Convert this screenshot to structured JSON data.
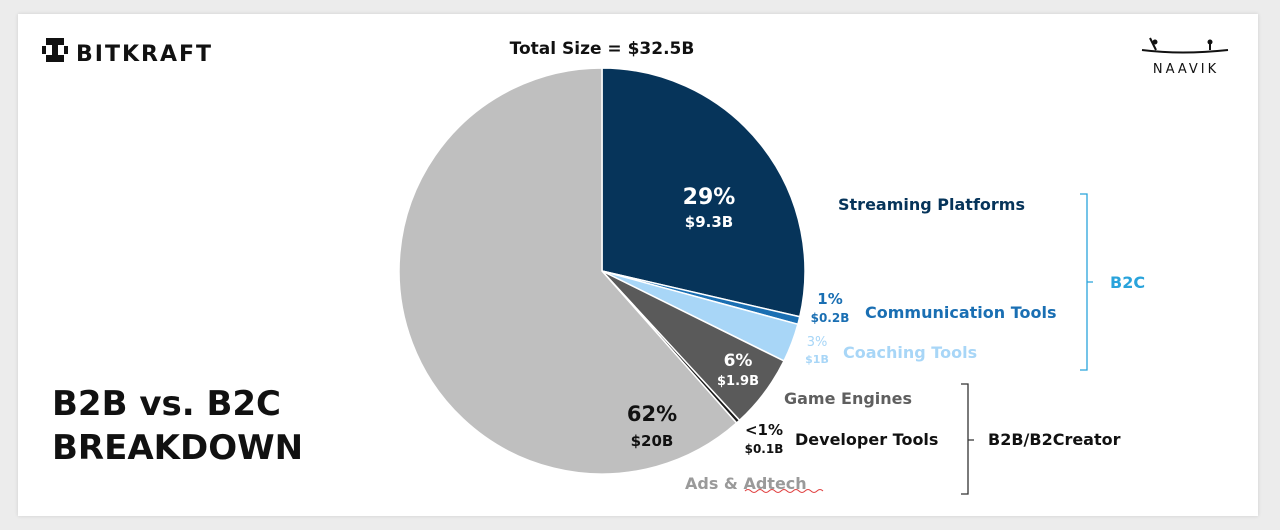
{
  "brand": {
    "left_logo": "BITKRAFT",
    "right_logo": "NAAVIK"
  },
  "headline": {
    "line1": "B2B vs. B2C",
    "line2": "BREAKDOWN"
  },
  "chart_data": {
    "type": "pie",
    "title": "Total Size = $32.5B",
    "slices": [
      {
        "label": "Streaming Platforms",
        "pct_label": "29%",
        "value_label": "$9.3B",
        "value": 9.3,
        "color": "#06345a",
        "label_color": "#06345a",
        "pct_color": "#ffffff"
      },
      {
        "label": "Communication Tools",
        "pct_label": "1%",
        "value_label": "$0.2B",
        "value": 0.2,
        "color": "#1a6fb3",
        "label_color": "#1a6fb3",
        "pct_color": "#1a6fb3"
      },
      {
        "label": "Coaching Tools",
        "pct_label": "3%",
        "value_label": "$1B",
        "value": 1.0,
        "color": "#a8d6f7",
        "label_color": "#a8d6f7",
        "pct_color": "#a8d6f7"
      },
      {
        "label": "Game Engines",
        "pct_label": "6%",
        "value_label": "$1.9B",
        "value": 1.9,
        "color": "#5a5a5a",
        "label_color": "#5f5f5f",
        "pct_color": "#ffffff"
      },
      {
        "label": "Developer Tools",
        "pct_label": "<1%",
        "value_label": "$0.1B",
        "value": 0.1,
        "color": "#1a1a1a",
        "label_color": "#111111",
        "pct_color": "#111111"
      },
      {
        "label": "Ads & Adtech",
        "pct_label": "62%",
        "value_label": "$20B",
        "value": 20.0,
        "color": "#bfbfbf",
        "label_color": "#9a9a9a",
        "pct_color": "#111111"
      }
    ],
    "groups": [
      {
        "name": "B2C",
        "color": "#29a3db"
      },
      {
        "name": "B2B/B2Creator",
        "color": "#111111"
      }
    ]
  }
}
